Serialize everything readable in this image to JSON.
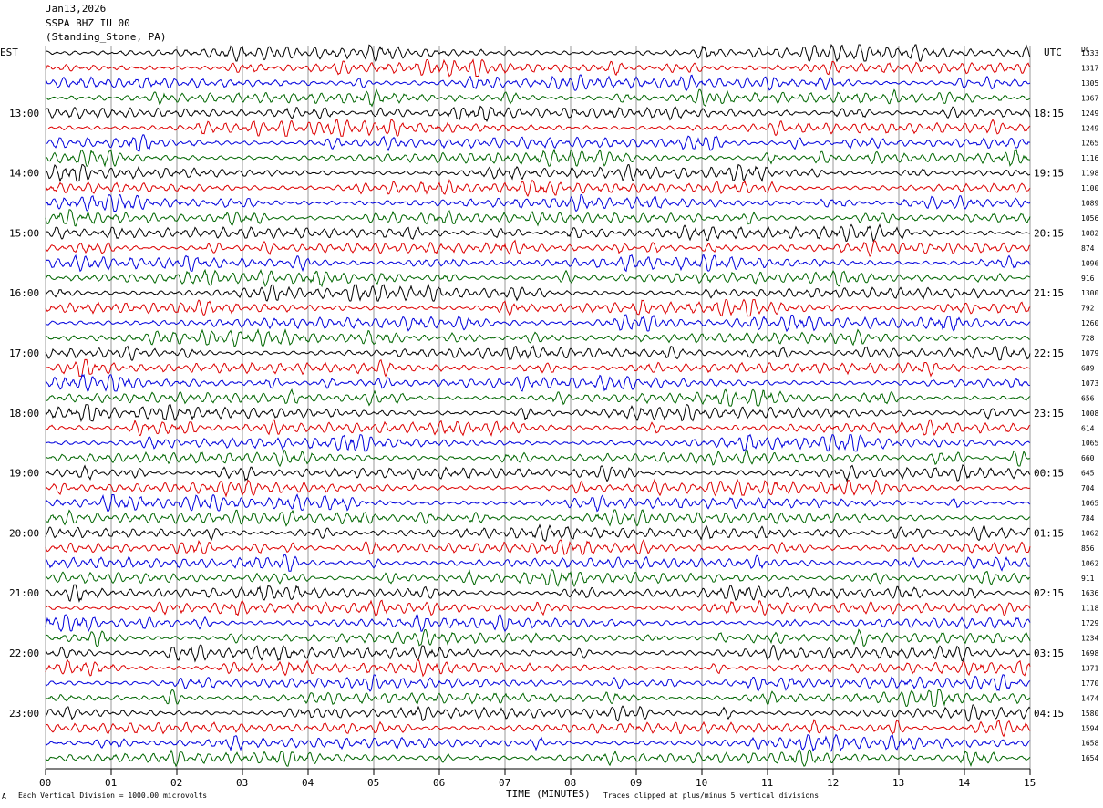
{
  "header": {
    "date": "Jan13,2026",
    "station": "SSPA BHZ IU 00",
    "location": "(Standing_Stone, PA)"
  },
  "left_axis_title": "EST",
  "right_axis_title": "UTC",
  "dc_label": "DC",
  "footer": {
    "scale_note": "Each Vertical Division = 1000.00 microvolts",
    "clip_note": "Traces clipped at plus/minus 5 vertical divisions",
    "logo_text": "A"
  },
  "chart_data": {
    "type": "line",
    "title": "",
    "xlabel": "TIME (MINUTES)",
    "x_ticks": [
      "00",
      "01",
      "02",
      "03",
      "04",
      "05",
      "06",
      "07",
      "08",
      "09",
      "10",
      "11",
      "12",
      "13",
      "14",
      "15"
    ],
    "xlim": [
      0,
      15
    ],
    "trace_colors": [
      "#000000",
      "#dd0000",
      "#0000dd",
      "#006600"
    ],
    "trace_count": 48,
    "left_hour_labels": [
      "13:00",
      "14:00",
      "15:00",
      "16:00",
      "17:00",
      "18:00",
      "19:00",
      "20:00",
      "21:00",
      "22:00",
      "23:00"
    ],
    "right_hour_labels": [
      "18:15",
      "19:15",
      "20:15",
      "21:15",
      "22:15",
      "23:15",
      "00:15",
      "01:15",
      "02:15",
      "03:15",
      "04:15"
    ],
    "dc_offsets": [
      "1333",
      "1317",
      "1305",
      "1367",
      "1249",
      "1249",
      "1265",
      "1116",
      "1198",
      "1100",
      "1089",
      "1056",
      "1082",
      "874",
      "1096",
      "916",
      "1300",
      "792",
      "1260",
      "728",
      "1079",
      "689",
      "1073",
      "656",
      "1008",
      "614",
      "1065",
      "660",
      "645",
      "704",
      "1065",
      "784",
      "1062",
      "856",
      "1062",
      "911",
      "1636",
      "1118",
      "1729",
      "1234",
      "1698",
      "1371",
      "1770",
      "1474",
      "1580",
      "1594",
      "1658",
      "1654"
    ],
    "grid": true
  }
}
